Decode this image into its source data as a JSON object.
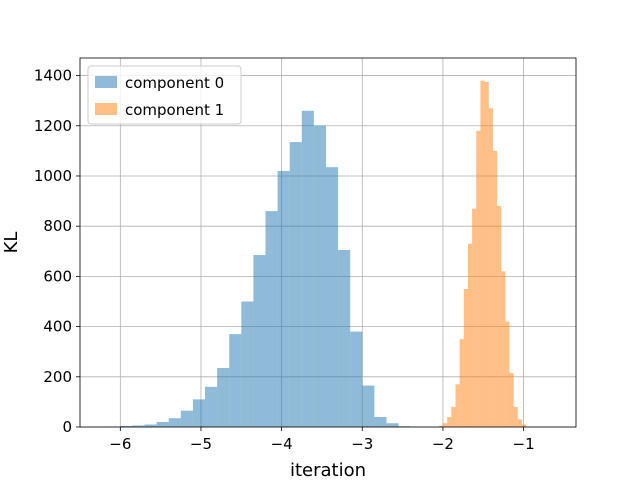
{
  "chart_data": {
    "type": "bar",
    "title": "",
    "xlabel": "iteration",
    "ylabel": "KL",
    "xlim": [
      -6.5,
      -0.35
    ],
    "ylim": [
      0,
      1400
    ],
    "xticks": [
      -6,
      -5,
      -4,
      -3,
      -2,
      -1
    ],
    "xtick_labels": [
      "−6",
      "−5",
      "−4",
      "−3",
      "−2",
      "−1"
    ],
    "yticks": [
      0,
      200,
      400,
      600,
      800,
      1000,
      1200,
      1400
    ],
    "ytick_labels": [
      "0",
      "200",
      "400",
      "600",
      "800",
      "1000",
      "1200",
      "1400"
    ],
    "grid": true,
    "legend_position": "upper-left",
    "series": [
      {
        "name": "component 0",
        "color": "#1f77b4",
        "alpha": 0.5,
        "bin_width": 0.15,
        "bin_starts": [
          -6.3,
          -6.15,
          -6.0,
          -5.85,
          -5.7,
          -5.55,
          -5.4,
          -5.25,
          -5.1,
          -4.95,
          -4.8,
          -4.65,
          -4.5,
          -4.35,
          -4.2,
          -4.05,
          -3.9,
          -3.75,
          -3.6,
          -3.45,
          -3.3,
          -3.15,
          -3.0,
          -2.85,
          -2.7,
          -2.55
        ],
        "counts": [
          1,
          2,
          4,
          6,
          10,
          20,
          35,
          65,
          110,
          160,
          235,
          370,
          500,
          685,
          860,
          1020,
          1135,
          1260,
          1200,
          1035,
          705,
          380,
          165,
          40,
          15,
          3
        ]
      },
      {
        "name": "component 1",
        "color": "#ff7f0e",
        "alpha": 0.5,
        "bin_width": 0.0515,
        "bin_starts": [
          -2.05,
          -1.9985,
          -1.947,
          -1.8955,
          -1.844,
          -1.7925,
          -1.741,
          -1.6895,
          -1.638,
          -1.5865,
          -1.535,
          -1.4835,
          -1.432,
          -1.3805,
          -1.329,
          -1.2775,
          -1.226,
          -1.1745,
          -1.123,
          -1.0715,
          -1.02,
          -0.9685
        ],
        "counts": [
          5,
          15,
          40,
          80,
          170,
          350,
          550,
          730,
          870,
          1180,
          1380,
          1375,
          1270,
          1100,
          880,
          620,
          420,
          215,
          80,
          30,
          10,
          2
        ]
      }
    ]
  }
}
